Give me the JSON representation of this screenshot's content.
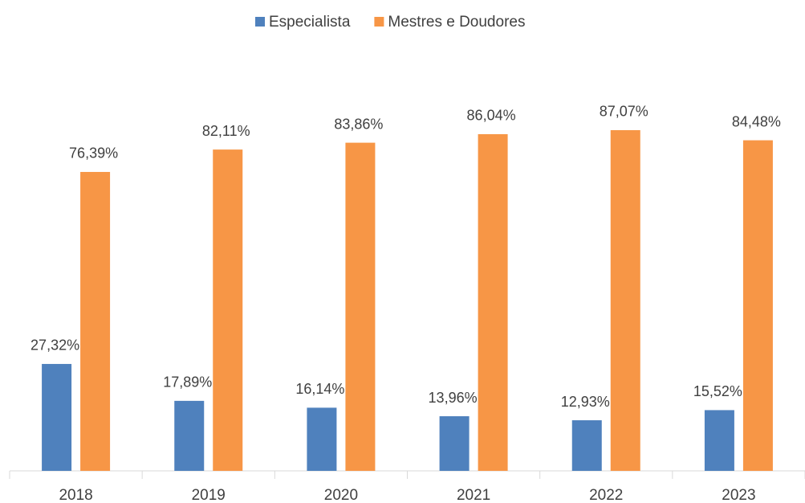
{
  "chart_data": {
    "type": "bar",
    "categories": [
      "2018",
      "2019",
      "2020",
      "2021",
      "2022",
      "2023"
    ],
    "series": [
      {
        "name": "Especialista",
        "color": "#4f81bd",
        "values": [
          27.32,
          17.89,
          16.14,
          13.96,
          12.93,
          15.52
        ],
        "value_labels": [
          "27,32%",
          "17,89%",
          "16,14%",
          "13,96%",
          "12,93%",
          "15,52%"
        ]
      },
      {
        "name": "Mestres e Doudores",
        "color": "#f79646",
        "values": [
          76.39,
          82.11,
          83.86,
          86.04,
          87.07,
          84.48
        ],
        "value_labels": [
          "76,39%",
          "82,11%",
          "83,86%",
          "86,04%",
          "87,07%",
          "84,48%"
        ]
      }
    ],
    "ylim": [
      0,
      100
    ],
    "legend": "top"
  }
}
